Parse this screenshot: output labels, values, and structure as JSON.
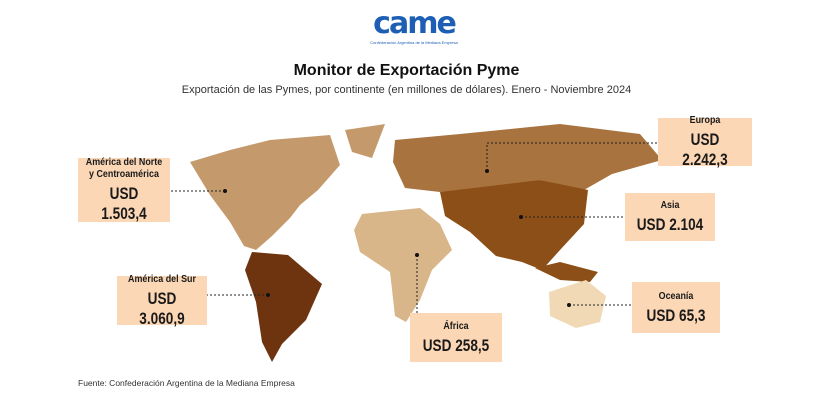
{
  "logo": {
    "text": "came",
    "tagline": "Confederación Argentina de la Mediana Empresa"
  },
  "title": "Monitor de Exportación Pyme",
  "subtitle": "Exportación de las Pymes, por continente (en millones de dólares). Enero - Noviembre 2024",
  "regions": [
    {
      "name": "Europa",
      "value": "USD 2.242,3",
      "color": "#a8733f"
    },
    {
      "name": "América del Norte y Centroamérica",
      "value": "USD 1.503,4",
      "color": "#c49a6c"
    },
    {
      "name": "Asia",
      "value": "USD 2.104",
      "color": "#8c4f17"
    },
    {
      "name": "América del Sur",
      "value": "USD 3.060,9",
      "color": "#6e3410"
    },
    {
      "name": "Oceanía",
      "value": "USD 65,3",
      "color": "#f1d9b5"
    },
    {
      "name": "África",
      "value": "USD 258,5",
      "color": "#d9b58a"
    }
  ],
  "label_bg": "#fcd7b6",
  "footer": "Fuente: Confederación Argentina de la Mediana Empresa"
}
